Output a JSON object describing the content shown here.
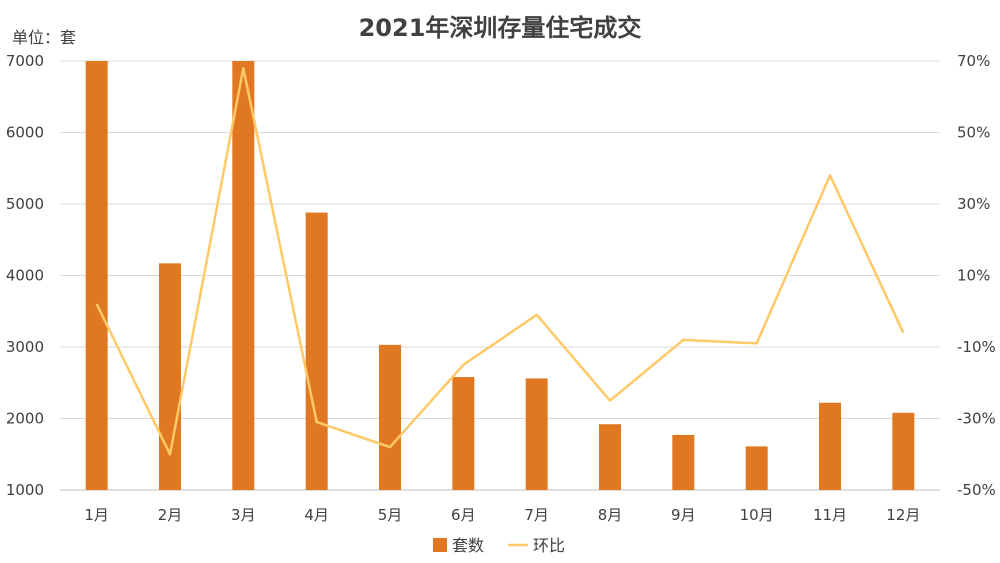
{
  "chart_data": {
    "type": "bar",
    "title": "2021年深圳存量住宅成交",
    "unit_label": "单位：套",
    "categories": [
      "1月",
      "2月",
      "3月",
      "4月",
      "5月",
      "6月",
      "7月",
      "8月",
      "9月",
      "10月",
      "11月",
      "12月"
    ],
    "series": [
      {
        "name": "套数",
        "type": "bar",
        "axis": "left",
        "color": "#E07822",
        "values": [
          7000,
          4170,
          7000,
          4880,
          3030,
          2580,
          2560,
          1920,
          1770,
          1610,
          2220,
          2080
        ]
      },
      {
        "name": "环比",
        "type": "line",
        "axis": "right",
        "color": "#FFC968",
        "values": [
          2,
          -40,
          68,
          -31,
          -38,
          -15,
          -1,
          -25,
          -8,
          -9,
          38,
          -6
        ]
      }
    ],
    "y_left": {
      "min": 1000,
      "max": 7000,
      "ticks": [
        "1000",
        "2000",
        "3000",
        "4000",
        "5000",
        "6000",
        "7000"
      ]
    },
    "y_right": {
      "min": -50,
      "max": 70,
      "ticks": [
        "-50%",
        "-30%",
        "-10%",
        "10%",
        "30%",
        "50%",
        "70%"
      ]
    },
    "grid": true,
    "legend_position": "bottom"
  }
}
